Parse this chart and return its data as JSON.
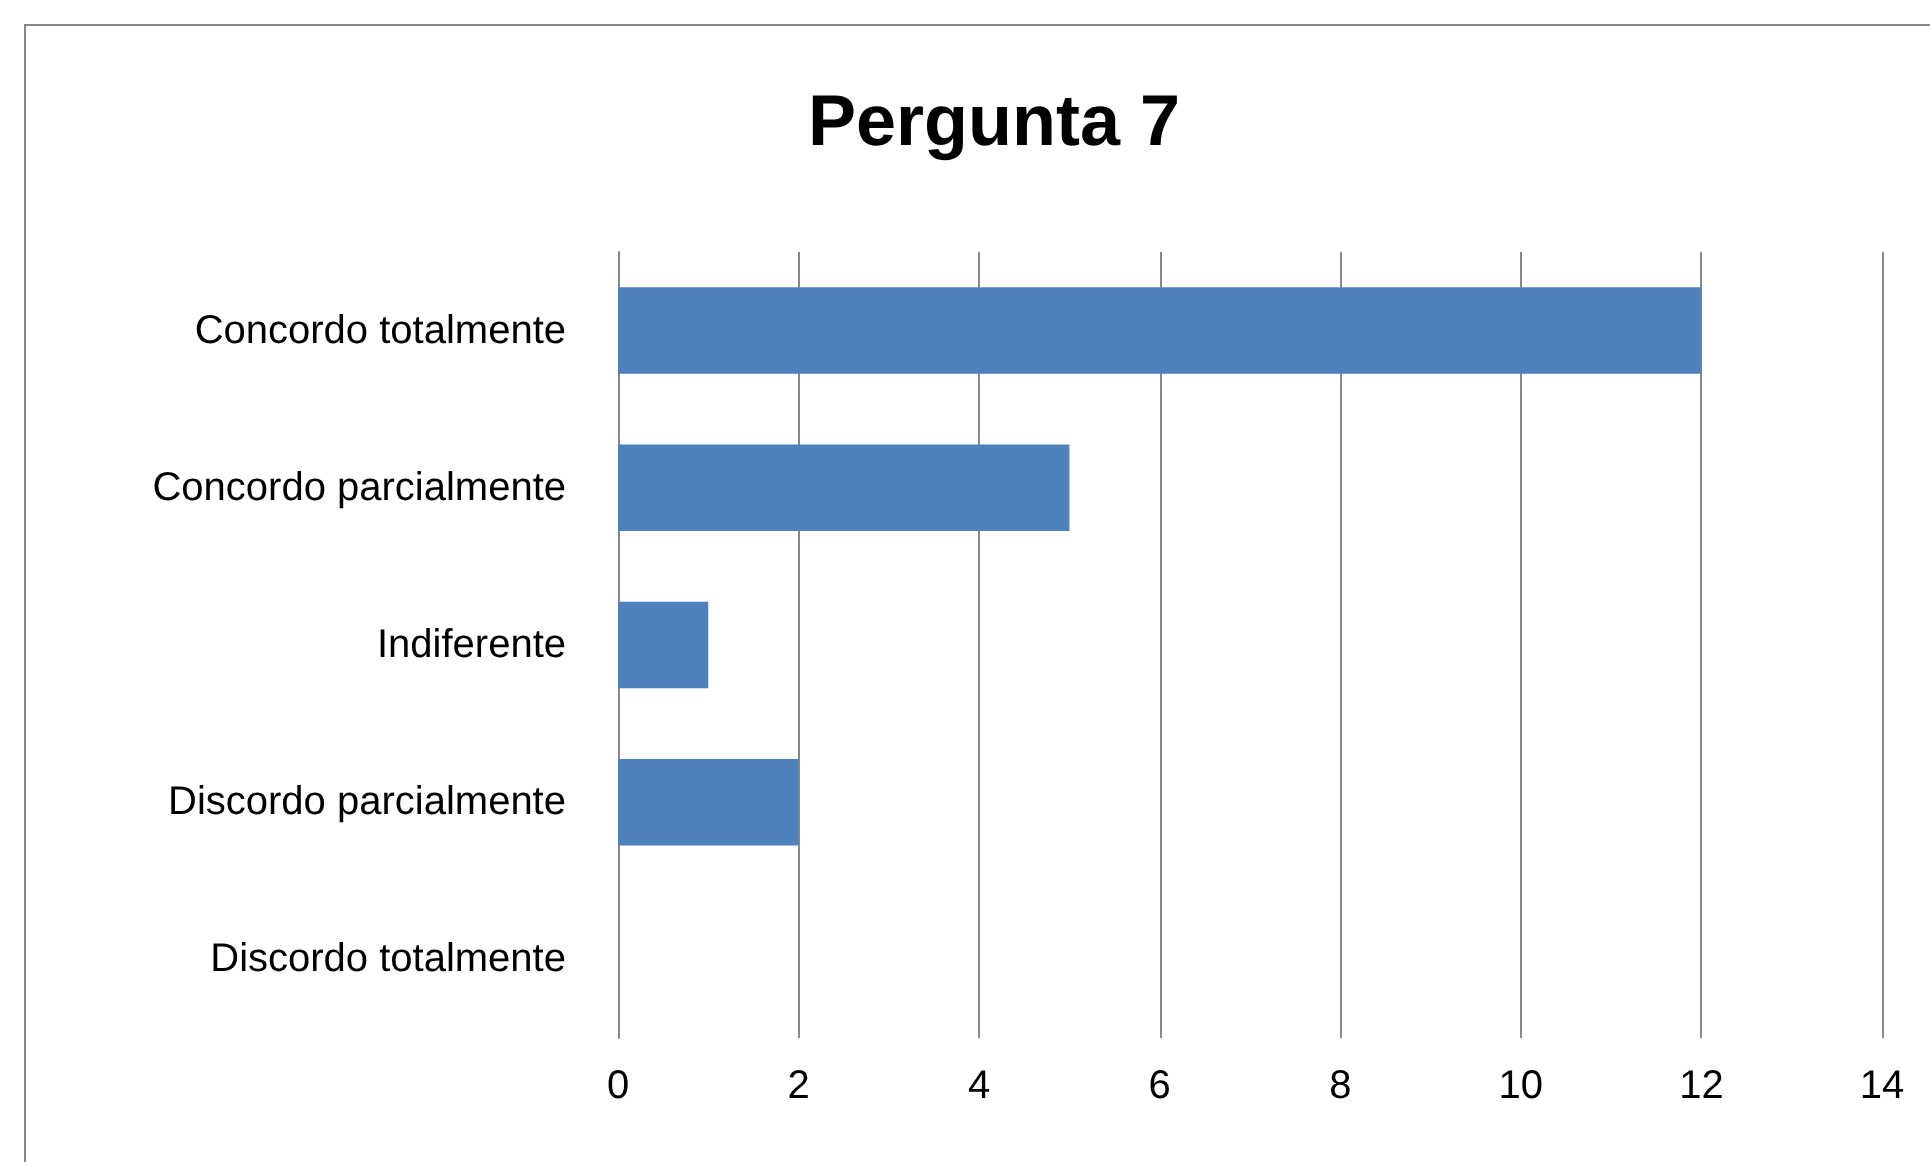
{
  "chart_data": {
    "type": "bar",
    "orientation": "horizontal",
    "title": "Pergunta 7",
    "categories": [
      "Concordo totalmente",
      "Concordo parcialmente",
      "Indiferente",
      "Discordo parcialmente",
      "Discordo totalmente"
    ],
    "values": [
      12,
      5,
      1,
      2,
      0
    ],
    "color": "#4f81bd",
    "xlim": [
      0,
      14
    ],
    "xticks": [
      0,
      2,
      4,
      6,
      8,
      10,
      12,
      14
    ],
    "grid": "x"
  }
}
